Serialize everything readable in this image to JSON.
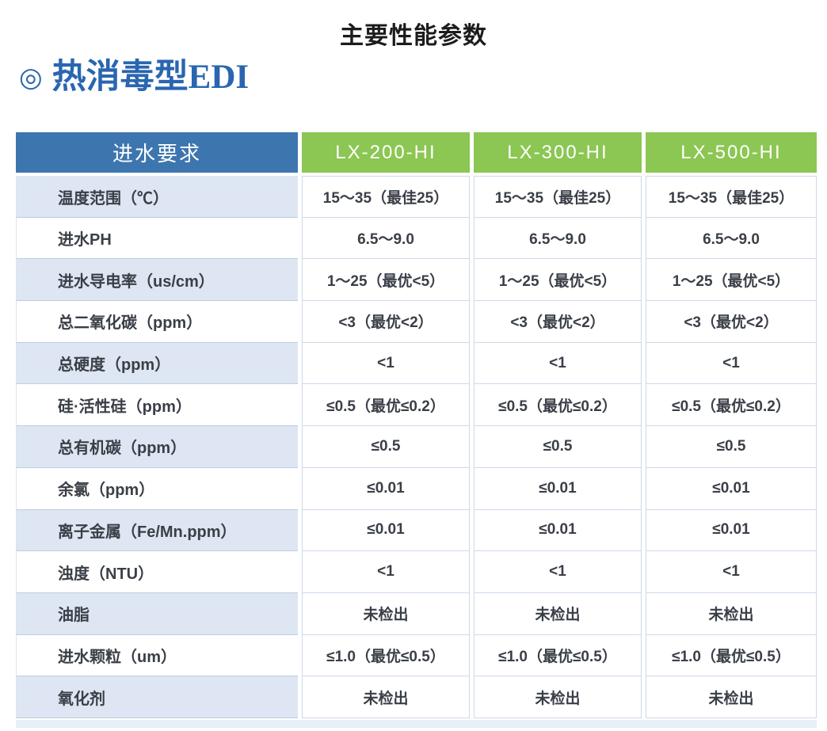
{
  "page": {
    "title": "主要性能参数",
    "section_marker": "◎",
    "section_title": "热消毒型EDI"
  },
  "colors": {
    "header_blue": "#3d76af",
    "header_green": "#8cc653",
    "striped_row_blue": "#dde6f2",
    "section_title_blue": "#2a66b0",
    "cell_border": "#ccdaea"
  },
  "table": {
    "header": {
      "label": "进水要求",
      "models": [
        "LX-200-HI",
        "LX-300-HI",
        "LX-500-HI"
      ]
    },
    "rows": [
      {
        "label": "温度范围（℃）",
        "values": [
          "15～35（最佳25）",
          "15～35（最佳25）",
          "15～35（最佳25）"
        ]
      },
      {
        "label": "进水PH",
        "values": [
          "6.5～9.0",
          "6.5～9.0",
          "6.5～9.0"
        ]
      },
      {
        "label": "进水导电率（us/cm）",
        "values": [
          "1～25（最优<5）",
          "1～25（最优<5）",
          "1～25（最优<5）"
        ]
      },
      {
        "label": "总二氧化碳（ppm）",
        "values": [
          "<3（最优<2）",
          "<3（最优<2）",
          "<3（最优<2）"
        ]
      },
      {
        "label": "总硬度（ppm）",
        "values": [
          "<1",
          "<1",
          "<1"
        ]
      },
      {
        "label": "硅·活性硅（ppm）",
        "values": [
          "≤0.5（最优≤0.2）",
          "≤0.5（最优≤0.2）",
          "≤0.5（最优≤0.2）"
        ]
      },
      {
        "label": "总有机碳（ppm）",
        "values": [
          "≤0.5",
          "≤0.5",
          "≤0.5"
        ]
      },
      {
        "label": "余氯（ppm）",
        "values": [
          "≤0.01",
          "≤0.01",
          "≤0.01"
        ]
      },
      {
        "label": "离子金属（Fe/Mn.ppm）",
        "values": [
          "≤0.01",
          "≤0.01",
          "≤0.01"
        ]
      },
      {
        "label": "浊度（NTU）",
        "values": [
          "<1",
          "<1",
          "<1"
        ]
      },
      {
        "label": "油脂",
        "values": [
          "未检出",
          "未检出",
          "未检出"
        ]
      },
      {
        "label": "进水颗粒（um）",
        "values": [
          "≤1.0（最优≤0.5）",
          "≤1.0（最优≤0.5）",
          "≤1.0（最优≤0.5）"
        ]
      },
      {
        "label": "氧化剂",
        "values": [
          "未检出",
          "未检出",
          "未检出"
        ]
      }
    ]
  }
}
